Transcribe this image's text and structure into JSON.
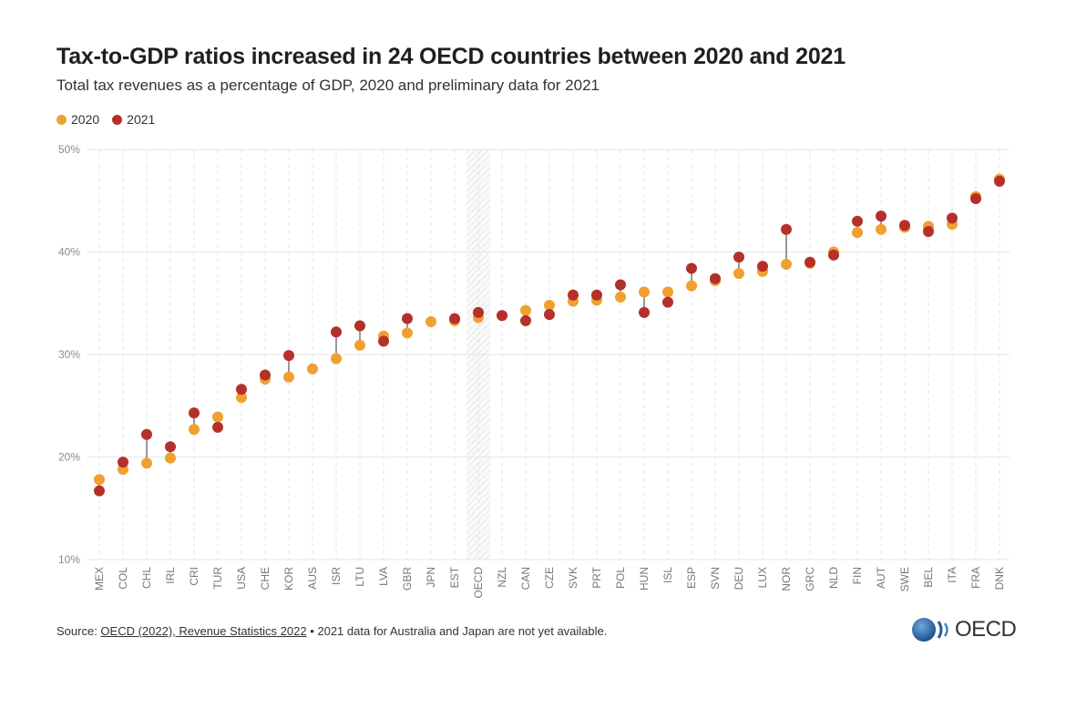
{
  "title": "Tax-to-GDP ratios increased in 24 OECD countries between 2020 and 2021",
  "subtitle": "Total tax revenues as a percentage of GDP, 2020 and preliminary data for 2021",
  "legend": [
    {
      "label": "2020",
      "color": "#f0a030"
    },
    {
      "label": "2021",
      "color": "#b5302a"
    }
  ],
  "footer": {
    "source_prefix": "Source: ",
    "source_link": "OECD (2022), Revenue Statistics 2022",
    "source_note": " • 2021 data for Australia and Japan are not yet available.",
    "logo_text": "OECD"
  },
  "chart_data": {
    "type": "scatter",
    "title": "Tax-to-GDP ratios increased in 24 OECD countries between 2020 and 2021",
    "subtitle": "Total tax revenues as a percentage of GDP, 2020 and preliminary data for 2021",
    "ylim": [
      10,
      50
    ],
    "yticks": [
      10,
      20,
      30,
      40,
      50
    ],
    "ytick_labels": [
      "10%",
      "20%",
      "30%",
      "40%",
      "50%"
    ],
    "grid": true,
    "legend_position": "top-left",
    "highlight_category": "OECD",
    "categories": [
      "MEX",
      "COL",
      "CHL",
      "IRL",
      "CRI",
      "TUR",
      "USA",
      "CHE",
      "KOR",
      "AUS",
      "ISR",
      "LTU",
      "LVA",
      "GBR",
      "JPN",
      "EST",
      "OECD",
      "NZL",
      "CAN",
      "CZE",
      "SVK",
      "PRT",
      "POL",
      "HUN",
      "ISL",
      "ESP",
      "SVN",
      "DEU",
      "LUX",
      "NOR",
      "GRC",
      "NLD",
      "FIN",
      "AUT",
      "SWE",
      "BEL",
      "ITA",
      "FRA",
      "DNK"
    ],
    "series": [
      {
        "name": "2020",
        "color": "#f0a030",
        "values": [
          17.8,
          18.8,
          19.4,
          19.9,
          22.7,
          23.9,
          25.8,
          27.6,
          27.8,
          28.6,
          29.6,
          30.9,
          31.8,
          32.1,
          33.2,
          33.3,
          33.6,
          33.8,
          34.3,
          34.8,
          35.2,
          35.3,
          35.6,
          36.1,
          36.1,
          36.7,
          37.2,
          37.9,
          38.1,
          38.8,
          38.9,
          40.0,
          41.9,
          42.2,
          42.4,
          42.5,
          42.7,
          45.4,
          47.1
        ]
      },
      {
        "name": "2021",
        "color": "#b5302a",
        "values": [
          16.7,
          19.5,
          22.2,
          21.0,
          24.3,
          22.9,
          26.6,
          28.0,
          29.9,
          null,
          32.2,
          32.8,
          31.3,
          33.5,
          null,
          33.5,
          34.1,
          33.8,
          33.3,
          33.9,
          35.8,
          35.8,
          36.8,
          34.1,
          35.1,
          38.4,
          37.4,
          39.5,
          38.6,
          42.2,
          39.0,
          39.7,
          43.0,
          43.5,
          42.6,
          42.0,
          43.3,
          45.2,
          46.9
        ]
      }
    ]
  }
}
